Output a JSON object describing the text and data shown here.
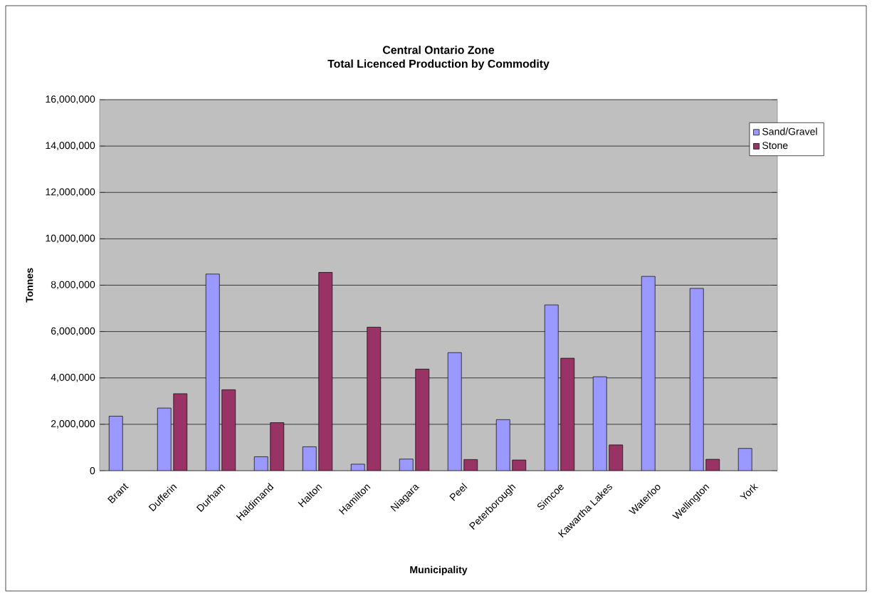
{
  "chart_data": {
    "type": "bar",
    "title": "Central Ontario Zone\nTotal Licenced Production by Commodity",
    "xlabel": "Municipality",
    "ylabel": "Tonnes",
    "categories": [
      "Brant",
      "Dufferin",
      "Durham",
      "Haldimand",
      "Halton",
      "Hamilton",
      "Niagara",
      "Peel",
      "Peterborough",
      "Simcoe",
      "Kawartha Lakes",
      "Waterloo",
      "Wellington",
      "York"
    ],
    "series": [
      {
        "name": "Sand/Gravel",
        "color": "#9999ff",
        "values": [
          2350000,
          2700000,
          8480000,
          600000,
          1030000,
          280000,
          500000,
          5090000,
          2200000,
          7150000,
          4050000,
          8380000,
          7860000,
          960000
        ]
      },
      {
        "name": "Stone",
        "color": "#993366",
        "values": [
          null,
          3320000,
          3490000,
          2070000,
          8550000,
          6190000,
          4380000,
          480000,
          460000,
          4850000,
          1110000,
          null,
          490000,
          null
        ]
      }
    ],
    "ylim": [
      0,
      16000000
    ],
    "yticks": [
      {
        "value": 0,
        "label": "0"
      },
      {
        "value": 2000000,
        "label": "2,000,000"
      },
      {
        "value": 4000000,
        "label": "4,000,000"
      },
      {
        "value": 6000000,
        "label": "6,000,000"
      },
      {
        "value": 8000000,
        "label": "8,000,000"
      },
      {
        "value": 10000000,
        "label": "10,000,000"
      },
      {
        "value": 12000000,
        "label": "12,000,000"
      },
      {
        "value": 14000000,
        "label": "14,000,000"
      },
      {
        "value": 16000000,
        "label": "16,000,000"
      }
    ],
    "grid": "y",
    "legend": "top right"
  }
}
